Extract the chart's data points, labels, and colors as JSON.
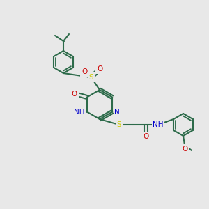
{
  "bg_color": "#e8e8e8",
  "bond_color": "#2d6b4a",
  "bond_lw": 1.5,
  "atom_colors": {
    "N": "#0000cc",
    "O": "#cc0000",
    "S": "#cccc00",
    "H": "#0000cc",
    "C": "#2d6b4a"
  },
  "font_size": 7.5
}
